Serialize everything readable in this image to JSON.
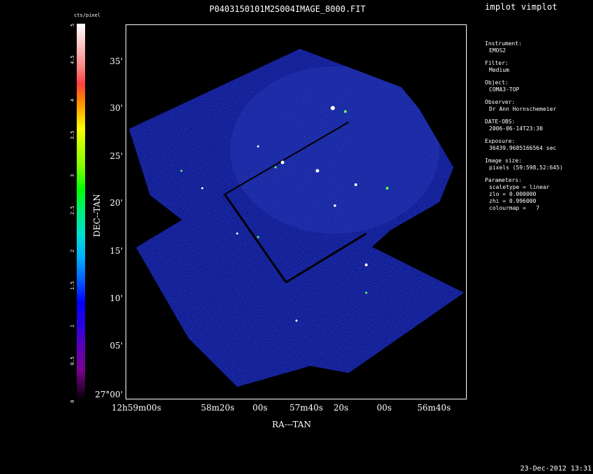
{
  "window": {
    "app_title": "implot vimplot"
  },
  "plot": {
    "title": "P0403150101M2S004IMAGE_8000.FIT",
    "colorbar_label": "cts/pixel",
    "colorbar_ticks": [
      "0",
      "0.5",
      "1",
      "1.5",
      "2",
      "2.5",
      "3",
      "3.5",
      "4",
      "4.5",
      "5"
    ],
    "x_axis_label": "RA---TAN",
    "y_axis_label": "DEC--TAN",
    "y_ticks": [
      "35'",
      "30'",
      "25'",
      "20'",
      "15'",
      "10'",
      "05'",
      "27°00'"
    ],
    "x_ticks": [
      "12h59m00s",
      "58m20s",
      "00s",
      "57m40s",
      "20s",
      "00s",
      "56m40s"
    ]
  },
  "info": [
    {
      "label": "Instrument:",
      "value": "EMOS2"
    },
    {
      "label": "Filter:",
      "value": "Medium"
    },
    {
      "label": "Object:",
      "value": "COMA3-TOP"
    },
    {
      "label": "Observer:",
      "value": "Dr Ann Hornschemeier"
    },
    {
      "label": "DATE-OBS:",
      "value": "2006-06-14T23:30"
    },
    {
      "label": "Exposure:",
      "value": "36439.9685166564 sec"
    },
    {
      "label": "Image size:",
      "value": "pixels (59:598,52:645)"
    },
    {
      "label": "Parameters:",
      "values": [
        "scaletype = linear",
        "zlo = 0.000000",
        "zhi = 0.996000",
        "colourmap =   7"
      ]
    }
  ],
  "footer": {
    "datestamp": "23-Dec-2012 13:31"
  },
  "colors": {
    "background": "#000000",
    "frame": "#ffffff",
    "image_noise": "#1a2aa0"
  }
}
